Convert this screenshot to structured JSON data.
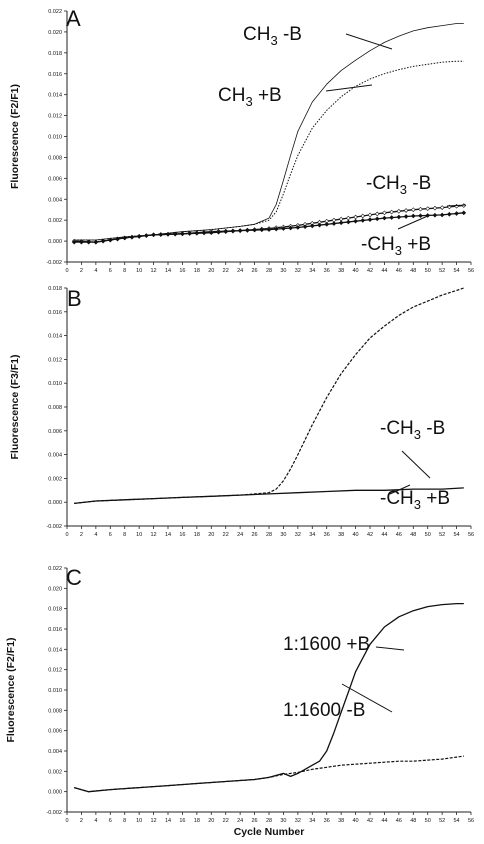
{
  "chart_data": [
    {
      "type": "line",
      "panel_label": "A",
      "ylabel": "Fluorescence (F2/F1)",
      "xlabel": "",
      "xlim": [
        0,
        56
      ],
      "ylim": [
        -0.002,
        0.022
      ],
      "x_ticks": [
        0,
        2,
        4,
        6,
        8,
        10,
        12,
        14,
        16,
        18,
        20,
        22,
        24,
        26,
        28,
        30,
        32,
        34,
        36,
        38,
        40,
        42,
        44,
        46,
        48,
        50,
        52,
        54,
        56
      ],
      "y_ticks": [
        "-0.002",
        "0.000",
        "0.002",
        "0.004",
        "0.006",
        "0.008",
        "0.010",
        "0.012",
        "0.014",
        "0.016",
        "0.018",
        "0.020",
        "0.022"
      ],
      "series": [
        {
          "name": "CH3 -B",
          "style": "solid-thin",
          "x": [
            1,
            4,
            8,
            12,
            16,
            20,
            24,
            26,
            28,
            29,
            30,
            31,
            32,
            34,
            36,
            38,
            40,
            42,
            44,
            46,
            48,
            50,
            52,
            54,
            55
          ],
          "y": [
            0.0001,
            0.0001,
            0.0004,
            0.0006,
            0.0009,
            0.0011,
            0.0014,
            0.0016,
            0.0022,
            0.0035,
            0.0058,
            0.0082,
            0.0105,
            0.0133,
            0.015,
            0.0163,
            0.0173,
            0.0182,
            0.019,
            0.0196,
            0.0201,
            0.0204,
            0.0206,
            0.0208,
            0.0208
          ]
        },
        {
          "name": "CH3 +B",
          "style": "dotted",
          "x": [
            1,
            4,
            8,
            12,
            16,
            20,
            24,
            26,
            28,
            29,
            30,
            31,
            32,
            34,
            36,
            38,
            40,
            42,
            44,
            46,
            48,
            50,
            52,
            54,
            55
          ],
          "y": [
            0.0001,
            0.0001,
            0.0004,
            0.0006,
            0.0009,
            0.0011,
            0.0014,
            0.0016,
            0.002,
            0.0028,
            0.0045,
            0.0064,
            0.0082,
            0.0108,
            0.0125,
            0.0138,
            0.0148,
            0.0155,
            0.016,
            0.0164,
            0.0167,
            0.0169,
            0.0171,
            0.0172,
            0.0172
          ]
        },
        {
          "name": "-CH3 -B",
          "style": "open-diamonds",
          "x": [
            1,
            4,
            8,
            12,
            16,
            20,
            24,
            28,
            32,
            36,
            40,
            44,
            48,
            52,
            55
          ],
          "y": [
            0.0,
            -0.0001,
            0.0003,
            0.0006,
            0.0007,
            0.0009,
            0.001,
            0.0012,
            0.0015,
            0.0019,
            0.0023,
            0.0027,
            0.003,
            0.0032,
            0.0034
          ]
        },
        {
          "name": "-CH3 +B",
          "style": "filled-diamonds",
          "x": [
            1,
            4,
            8,
            12,
            16,
            20,
            24,
            28,
            32,
            36,
            40,
            44,
            48,
            52,
            55
          ],
          "y": [
            -0.0001,
            -0.0001,
            0.0003,
            0.0006,
            0.0007,
            0.0008,
            0.001,
            0.0011,
            0.0013,
            0.0016,
            0.0019,
            0.0022,
            0.0024,
            0.0025,
            0.0027
          ]
        }
      ],
      "annotations": [
        {
          "main": "CH",
          "sub": "3",
          "rest": " -B"
        },
        {
          "main": "CH",
          "sub": "3",
          "rest": " +B"
        },
        {
          "main": "-CH",
          "sub": "3",
          "rest": " -B"
        },
        {
          "main": "-CH",
          "sub": "3",
          "rest": " +B"
        }
      ]
    },
    {
      "type": "line",
      "panel_label": "B",
      "ylabel": "Fluorescence (F3/F1)",
      "xlabel": "",
      "xlim": [
        0,
        56
      ],
      "ylim": [
        -0.002,
        0.018
      ],
      "x_ticks": [
        0,
        2,
        4,
        6,
        8,
        10,
        12,
        14,
        16,
        18,
        20,
        22,
        24,
        26,
        28,
        30,
        32,
        34,
        36,
        38,
        40,
        42,
        44,
        46,
        48,
        50,
        52,
        54,
        56
      ],
      "y_ticks": [
        "-0.002",
        "0.000",
        "0.002",
        "0.004",
        "0.006",
        "0.008",
        "0.010",
        "0.012",
        "0.014",
        "0.016",
        "0.018"
      ],
      "series": [
        {
          "name": "-CH3 -B",
          "style": "dashed",
          "x": [
            1,
            4,
            8,
            12,
            16,
            20,
            24,
            26,
            28,
            29,
            30,
            31,
            32,
            34,
            36,
            38,
            40,
            42,
            44,
            46,
            48,
            50,
            52,
            54,
            55
          ],
          "y": [
            -0.0001,
            0.0001,
            0.0002,
            0.0003,
            0.0004,
            0.0005,
            0.0006,
            0.0007,
            0.0008,
            0.0011,
            0.0018,
            0.0028,
            0.004,
            0.0065,
            0.0088,
            0.0108,
            0.0124,
            0.0138,
            0.0148,
            0.0157,
            0.0164,
            0.0169,
            0.0174,
            0.0178,
            0.018
          ]
        },
        {
          "name": "-CH3 +B",
          "style": "solid",
          "x": [
            1,
            4,
            8,
            12,
            16,
            20,
            24,
            28,
            32,
            36,
            40,
            44,
            48,
            52,
            55
          ],
          "y": [
            -0.0001,
            0.0001,
            0.0002,
            0.0003,
            0.0004,
            0.0005,
            0.0006,
            0.0007,
            0.0008,
            0.0009,
            0.001,
            0.001,
            0.0011,
            0.0011,
            0.0012
          ]
        }
      ],
      "annotations": [
        {
          "main": "-CH",
          "sub": "3",
          "rest": " -B"
        },
        {
          "main": "-CH",
          "sub": "3",
          "rest": " +B"
        }
      ]
    },
    {
      "type": "line",
      "panel_label": "C",
      "ylabel": "Fluorescence (F2/F1)",
      "xlabel": "Cycle Number",
      "xlim": [
        0,
        56
      ],
      "ylim": [
        -0.002,
        0.022
      ],
      "x_ticks": [
        0,
        2,
        4,
        6,
        8,
        10,
        12,
        14,
        16,
        18,
        20,
        22,
        24,
        26,
        28,
        30,
        32,
        34,
        36,
        38,
        40,
        42,
        44,
        46,
        48,
        50,
        52,
        54,
        56
      ],
      "y_ticks": [
        "-0.002",
        "0.000",
        "0.002",
        "0.004",
        "0.006",
        "0.008",
        "0.010",
        "0.012",
        "0.014",
        "0.016",
        "0.018",
        "0.020",
        "0.022"
      ],
      "series": [
        {
          "name": "1:1600 +B",
          "style": "solid",
          "x": [
            1,
            3,
            6,
            10,
            14,
            18,
            22,
            26,
            28,
            30,
            31,
            32,
            33,
            34,
            35,
            36,
            37,
            38,
            39,
            40,
            42,
            44,
            46,
            48,
            50,
            52,
            54,
            55
          ],
          "y": [
            0.0004,
            0.0,
            0.0002,
            0.0004,
            0.0006,
            0.0008,
            0.001,
            0.0012,
            0.0014,
            0.0018,
            0.0015,
            0.0018,
            0.0022,
            0.0026,
            0.003,
            0.004,
            0.0058,
            0.0078,
            0.0098,
            0.0118,
            0.0145,
            0.0162,
            0.0172,
            0.0178,
            0.0182,
            0.0184,
            0.0185,
            0.0185
          ]
        },
        {
          "name": "1:1600 -B",
          "style": "dashed",
          "x": [
            1,
            3,
            6,
            10,
            14,
            18,
            22,
            26,
            28,
            30,
            32,
            34,
            36,
            38,
            40,
            42,
            44,
            46,
            48,
            50,
            52,
            54,
            55
          ],
          "y": [
            0.0004,
            0.0,
            0.0002,
            0.0004,
            0.0006,
            0.0008,
            0.001,
            0.0012,
            0.0014,
            0.0017,
            0.0019,
            0.0022,
            0.0024,
            0.0026,
            0.0027,
            0.0028,
            0.0029,
            0.003,
            0.003,
            0.0031,
            0.0032,
            0.0034,
            0.0035
          ]
        }
      ],
      "annotations": [
        {
          "main": "1:1600 +B",
          "sub": "",
          "rest": ""
        },
        {
          "main": "1:1600 -B",
          "sub": "",
          "rest": ""
        }
      ]
    }
  ]
}
